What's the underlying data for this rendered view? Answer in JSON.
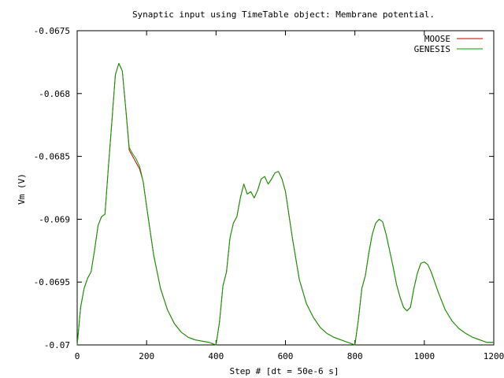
{
  "chart_data": {
    "type": "line",
    "title": "Synaptic input using TimeTable object: Membrane potential.",
    "xlabel": "Step # [dt = 50e-6 s]",
    "ylabel": "Vm (V)",
    "xlim": [
      0,
      1200
    ],
    "ylim": [
      -0.07,
      -0.0675
    ],
    "x_ticks": [
      0,
      200,
      400,
      600,
      800,
      1000,
      1200
    ],
    "x_tick_labels": [
      "0",
      "200",
      "400",
      "600",
      "800",
      "1000",
      "1200"
    ],
    "y_ticks": [
      -0.07,
      -0.0695,
      -0.069,
      -0.0685,
      -0.068,
      -0.0675
    ],
    "y_tick_labels": [
      "-0.07",
      "-0.0695",
      "-0.069",
      "-0.0685",
      "-0.068",
      "-0.0675"
    ],
    "grid": false,
    "legend_position": "top-right",
    "series": [
      {
        "name": "MOOSE",
        "color": "#cc0000",
        "x": [
          0,
          10,
          20,
          30,
          40,
          50,
          60,
          70,
          80,
          90,
          100,
          110,
          120,
          130,
          140,
          150,
          160,
          170,
          180,
          190,
          200,
          220,
          240,
          260,
          280,
          300,
          320,
          340,
          360,
          380,
          400,
          410,
          420,
          430,
          440,
          450,
          460,
          470,
          480,
          490,
          500,
          510,
          520,
          530,
          540,
          550,
          560,
          570,
          580,
          590,
          600,
          620,
          640,
          660,
          680,
          700,
          720,
          740,
          760,
          780,
          800,
          810,
          820,
          830,
          840,
          850,
          860,
          870,
          880,
          890,
          900,
          910,
          920,
          930,
          940,
          950,
          960,
          970,
          980,
          990,
          1000,
          1010,
          1020,
          1040,
          1060,
          1080,
          1100,
          1120,
          1140,
          1160,
          1180,
          1200
        ],
        "y": [
          -0.07,
          -0.0697,
          -0.06955,
          -0.06947,
          -0.06942,
          -0.06925,
          -0.06905,
          -0.06898,
          -0.06896,
          -0.06858,
          -0.06822,
          -0.06785,
          -0.06776,
          -0.06782,
          -0.06812,
          -0.06845,
          -0.0685,
          -0.06855,
          -0.0686,
          -0.0687,
          -0.0689,
          -0.06928,
          -0.06955,
          -0.06972,
          -0.06983,
          -0.0699,
          -0.06994,
          -0.06996,
          -0.06997,
          -0.06998,
          -0.07,
          -0.06982,
          -0.06953,
          -0.06942,
          -0.06915,
          -0.06903,
          -0.06898,
          -0.06883,
          -0.06872,
          -0.0688,
          -0.06878,
          -0.06883,
          -0.06877,
          -0.06868,
          -0.06866,
          -0.06872,
          -0.06868,
          -0.06863,
          -0.06862,
          -0.06868,
          -0.06878,
          -0.06915,
          -0.06948,
          -0.06967,
          -0.06978,
          -0.06986,
          -0.06991,
          -0.06994,
          -0.06996,
          -0.06998,
          -0.07,
          -0.0698,
          -0.06955,
          -0.06945,
          -0.06927,
          -0.06912,
          -0.06903,
          -0.069,
          -0.06902,
          -0.06912,
          -0.06925,
          -0.06938,
          -0.06952,
          -0.06962,
          -0.0697,
          -0.06973,
          -0.0697,
          -0.06955,
          -0.06943,
          -0.06935,
          -0.06934,
          -0.06936,
          -0.06942,
          -0.06958,
          -0.06972,
          -0.06981,
          -0.06987,
          -0.06991,
          -0.06994,
          -0.06996,
          -0.06998,
          -0.06998
        ]
      },
      {
        "name": "GENESIS",
        "color": "#00a000",
        "x": [
          0,
          10,
          20,
          30,
          40,
          50,
          60,
          70,
          80,
          90,
          100,
          110,
          120,
          130,
          140,
          150,
          160,
          170,
          180,
          190,
          200,
          220,
          240,
          260,
          280,
          300,
          320,
          340,
          360,
          380,
          400,
          410,
          420,
          430,
          440,
          450,
          460,
          470,
          480,
          490,
          500,
          510,
          520,
          530,
          540,
          550,
          560,
          570,
          580,
          590,
          600,
          620,
          640,
          660,
          680,
          700,
          720,
          740,
          760,
          780,
          800,
          810,
          820,
          830,
          840,
          850,
          860,
          870,
          880,
          890,
          900,
          910,
          920,
          930,
          940,
          950,
          960,
          970,
          980,
          990,
          1000,
          1010,
          1020,
          1040,
          1060,
          1080,
          1100,
          1120,
          1140,
          1160,
          1180,
          1200
        ],
        "y": [
          -0.07,
          -0.0697,
          -0.06955,
          -0.06947,
          -0.06942,
          -0.06925,
          -0.06905,
          -0.06898,
          -0.06896,
          -0.06858,
          -0.06822,
          -0.06785,
          -0.06776,
          -0.06782,
          -0.06812,
          -0.06843,
          -0.06848,
          -0.06852,
          -0.06858,
          -0.0687,
          -0.0689,
          -0.06928,
          -0.06955,
          -0.06972,
          -0.06983,
          -0.0699,
          -0.06994,
          -0.06996,
          -0.06997,
          -0.06998,
          -0.07,
          -0.06982,
          -0.06953,
          -0.06942,
          -0.06915,
          -0.06903,
          -0.06898,
          -0.06883,
          -0.06872,
          -0.0688,
          -0.06878,
          -0.06883,
          -0.06877,
          -0.06868,
          -0.06866,
          -0.06872,
          -0.06868,
          -0.06863,
          -0.06862,
          -0.06868,
          -0.06878,
          -0.06915,
          -0.06948,
          -0.06967,
          -0.06978,
          -0.06986,
          -0.06991,
          -0.06994,
          -0.06996,
          -0.06998,
          -0.07,
          -0.0698,
          -0.06955,
          -0.06945,
          -0.06927,
          -0.06912,
          -0.06903,
          -0.069,
          -0.06902,
          -0.06912,
          -0.06925,
          -0.06938,
          -0.06952,
          -0.06962,
          -0.0697,
          -0.06973,
          -0.0697,
          -0.06955,
          -0.06943,
          -0.06935,
          -0.06934,
          -0.06936,
          -0.06942,
          -0.06958,
          -0.06972,
          -0.06981,
          -0.06987,
          -0.06991,
          -0.06994,
          -0.06996,
          -0.06998,
          -0.06998
        ]
      }
    ]
  }
}
